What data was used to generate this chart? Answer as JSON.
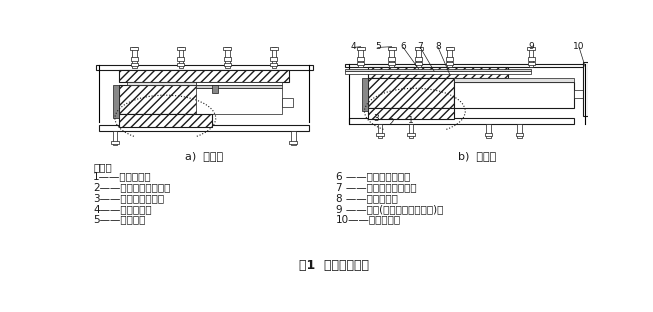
{
  "title": "图1  多向活动支座",
  "subtitle_a": "a)  纵桥向",
  "subtitle_b": "b)  横桥向",
  "note_header": "说明：",
  "labels_left": [
    "1——下支座板；",
    "2——球面非金属滑板；",
    "3——球面不锈钢板；",
    "4——上支座板；",
    "5——密封环；"
  ],
  "labels_right": [
    "6 ——平面不锈钢板；",
    "7 ——平面非金属滑板；",
    "8 ——球冠衬板；",
    "9 ——锚栓(螺栓、套筒和螺杆)；",
    "10——防尘围板。"
  ],
  "bg_color": "#ffffff",
  "text_color": "#1a1a1a",
  "line_color": "#1a1a1a",
  "fig_width": 6.53,
  "fig_height": 3.12,
  "dpi": 100
}
